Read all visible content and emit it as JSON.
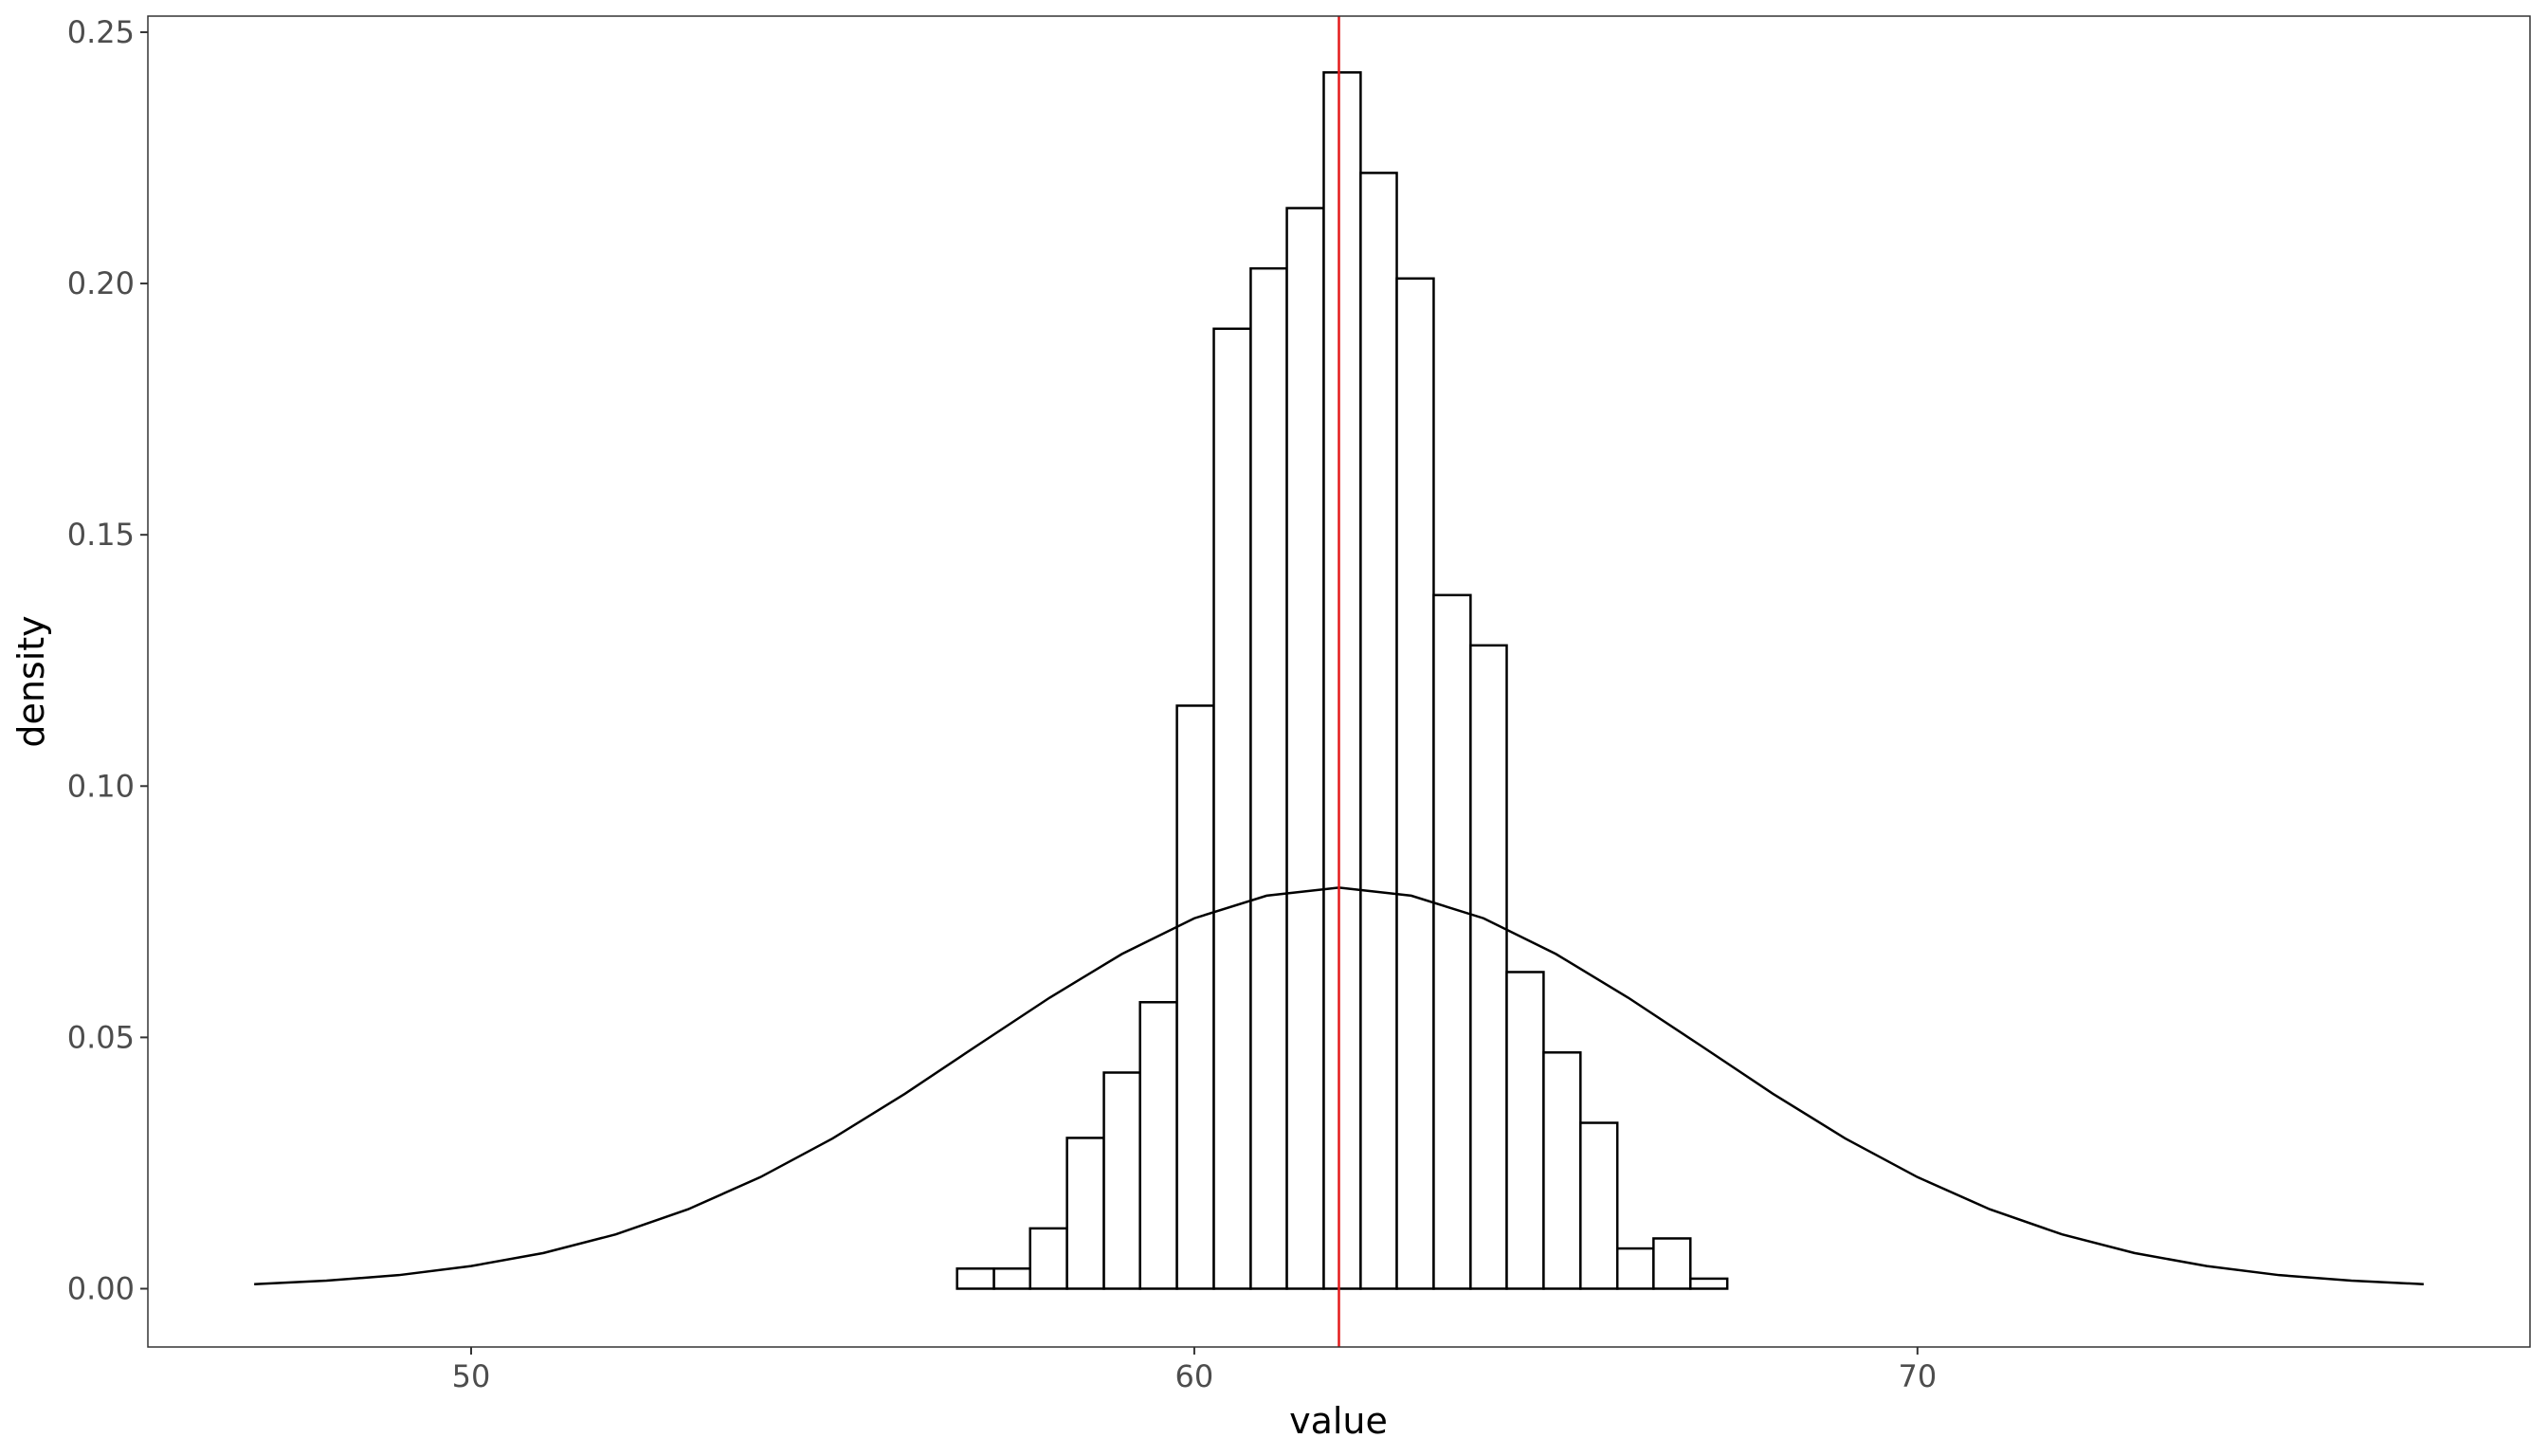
{
  "chart_data": {
    "type": "histogram",
    "x_label": "value",
    "y_label": "density",
    "bins": [
      56.72,
      57.23,
      57.73,
      58.24,
      58.75,
      59.25,
      59.76,
      60.27,
      60.78,
      61.28,
      61.79,
      62.3,
      62.8,
      63.31,
      63.82,
      64.32,
      64.83,
      65.34,
      65.85,
      66.35,
      66.86,
      67.37
    ],
    "values": [
      0.004,
      0.004,
      0.012,
      0.03,
      0.043,
      0.057,
      0.116,
      0.191,
      0.203,
      0.215,
      0.242,
      0.222,
      0.201,
      0.138,
      0.128,
      0.063,
      0.047,
      0.033,
      0.008,
      0.01,
      0.002
    ],
    "fill": "#ffffff",
    "edge_color": "#000000",
    "curve": {
      "color": "#000000",
      "x": [
        47,
        48,
        49,
        50,
        51,
        52,
        53,
        54,
        55,
        56,
        57,
        58,
        59,
        60,
        61,
        62,
        63,
        64,
        65,
        66,
        67,
        68,
        69,
        70,
        71,
        72,
        73,
        74,
        75,
        76,
        77
      ],
      "y": [
        0.0009,
        0.0016,
        0.0027,
        0.0045,
        0.0071,
        0.0108,
        0.0158,
        0.0222,
        0.0299,
        0.0388,
        0.0484,
        0.0579,
        0.0666,
        0.0737,
        0.0782,
        0.0798,
        0.0782,
        0.0737,
        0.0666,
        0.0579,
        0.0484,
        0.0388,
        0.0299,
        0.0222,
        0.0158,
        0.0108,
        0.0071,
        0.0045,
        0.0027,
        0.0016,
        0.0009
      ]
    },
    "vline": {
      "x": 62,
      "color": "#e41a1c"
    },
    "xlim": [
      45.53,
      78.47
    ],
    "ylim": [
      -0.0116,
      0.2532
    ],
    "xticks": [
      50,
      60,
      70
    ],
    "yticks": [
      {
        "value": 0,
        "label": "0.00"
      },
      0.05,
      {
        "value": 0.1,
        "label": "0.10"
      },
      0.15,
      {
        "value": 0.2,
        "label": "0.20"
      },
      0.25
    ],
    "grid": false
  }
}
